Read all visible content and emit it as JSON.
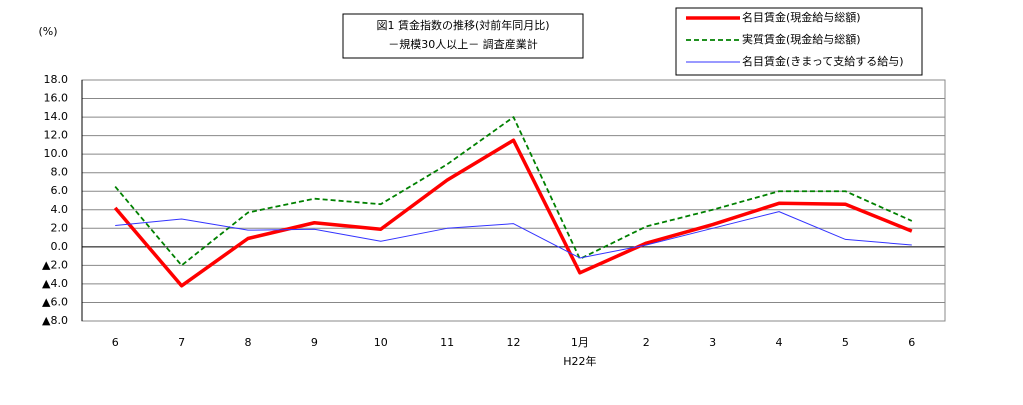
{
  "chart_data": {
    "type": "line",
    "title": "図1 賃金指数の推移(対前年同月比)",
    "subtitle": "－規模30人以上－ 調査産業計",
    "y_unit": "(%)",
    "annotation": "H22年",
    "categories": [
      "6",
      "7",
      "8",
      "9",
      "10",
      "11",
      "12",
      "1月",
      "2",
      "3",
      "4",
      "5",
      "6"
    ],
    "series": [
      {
        "name": "名目賃金(現金給与総額)",
        "color": "#ff0000",
        "dashed": false,
        "values": [
          4.2,
          -4.2,
          0.9,
          2.6,
          1.9,
          7.2,
          11.5,
          -2.8,
          0.4,
          2.4,
          4.7,
          4.6,
          1.7
        ]
      },
      {
        "name": "実質賃金(現金給与総額)",
        "color": "#008000",
        "dashed": true,
        "values": [
          6.5,
          -2.0,
          3.7,
          5.2,
          4.6,
          8.9,
          14.0,
          -1.3,
          2.2,
          4.0,
          6.0,
          6.0,
          2.8
        ]
      },
      {
        "name": "名目賃金(きまって支給する給与)",
        "color": "#3333ff",
        "dashed": false,
        "values": [
          2.3,
          3.0,
          1.8,
          1.9,
          0.6,
          2.0,
          2.5,
          -1.2,
          0.2,
          2.0,
          3.8,
          0.8,
          0.2
        ]
      }
    ],
    "ylim": [
      -8,
      18
    ],
    "yticks": [
      {
        "value": 18,
        "label": "18.0"
      },
      {
        "value": 16,
        "label": "16.0"
      },
      {
        "value": 14,
        "label": "14.0"
      },
      {
        "value": 12,
        "label": "12.0"
      },
      {
        "value": 10,
        "label": "10.0"
      },
      {
        "value": 8,
        "label": "8.0"
      },
      {
        "value": 6,
        "label": "6.0"
      },
      {
        "value": 4,
        "label": "4.0"
      },
      {
        "value": 2,
        "label": "2.0"
      },
      {
        "value": 0,
        "label": "0.0"
      },
      {
        "value": -2,
        "label": "▲2.0"
      },
      {
        "value": -4,
        "label": "▲4.0"
      },
      {
        "value": -6,
        "label": "▲6.0"
      },
      {
        "value": -8,
        "label": "▲8.0"
      }
    ],
    "grid": true
  }
}
